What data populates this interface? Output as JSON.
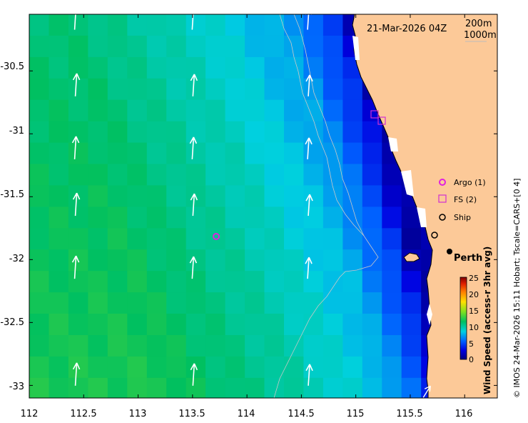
{
  "date_label": "21-Mar-2026 04Z",
  "depth_labels": [
    "200m",
    "1000m"
  ],
  "credit": "© IMOS 24-Mar-2026 15:11 Hobart; Tscale=CARS+[0 4]",
  "city": "Perth",
  "legend": {
    "argo": "Argo (1)",
    "fs": "FS (2)",
    "ship": "Ship"
  },
  "colorbar": {
    "label": "Wind Speed (access-r 3hr avg)",
    "ticks": [
      "0",
      "5",
      "10",
      "15",
      "20",
      "25"
    ]
  },
  "colors": {
    "land": "#fcc998",
    "argo_marker": "#e020e0",
    "fs_marker": "#d030d0"
  },
  "x_ticks": [
    "112",
    "112.5",
    "113",
    "113.5",
    "114",
    "114.5",
    "115",
    "115.5",
    "116"
  ],
  "y_ticks": [
    "-30.5",
    "-31",
    "-31.5",
    "-32",
    "-32.5",
    "-33"
  ],
  "chart_data": {
    "type": "heatmap",
    "variable": "Wind Speed (access-r 3hr avg)",
    "units_range": [
      0,
      25
    ],
    "xlim": [
      112,
      116.3
    ],
    "ylim": [
      -33.1,
      -30.05
    ],
    "argo_floats": [
      {
        "lon": 113.72,
        "lat": -31.84
      }
    ],
    "fs_points": [
      {
        "lon": 115.19,
        "lat": -30.88
      },
      {
        "lon": 115.25,
        "lat": -30.94
      }
    ],
    "ship_positions": [
      {
        "lon": 115.71,
        "lat": -31.82
      }
    ],
    "city": {
      "name": "Perth",
      "lon": 115.86,
      "lat": -31.95
    },
    "wind_arrows_direction": "northward",
    "wind_speed_field": {
      "west_offshore": 11.5,
      "mid_offshore": 9.5,
      "shelf": 7.5,
      "near_coast": 4,
      "coastal_min": 1
    }
  }
}
